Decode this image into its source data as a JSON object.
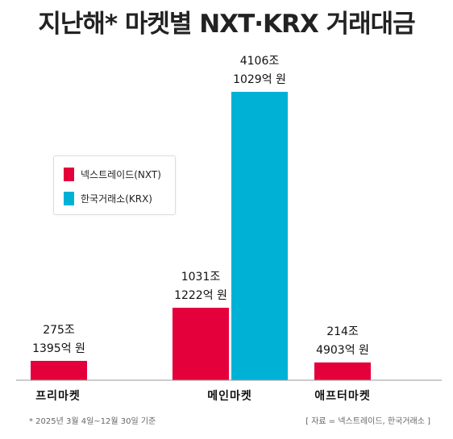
{
  "title": "지난해* 마켓별 NXT·KRX 거래대금",
  "colors": {
    "nxt": "#e4003a",
    "krx": "#00b1d6",
    "axis": "#999999"
  },
  "legend": {
    "nxt": "넥스트레이드(NXT)",
    "krx": "한국거래소(KRX)"
  },
  "footnote": "*  2025년 3월 4일~12월 30일 기준",
  "source": "[ 자료 = 넥스트레이드, 한국거래소 ]",
  "chart_data": {
    "type": "bar",
    "unit": "억 원",
    "categories": [
      "프리마켓",
      "메인마켓",
      "애프터마켓"
    ],
    "series": [
      {
        "name": "넥스트레이드(NXT)",
        "values": [
          2751395,
          10311222,
          2144903
        ],
        "labels": [
          [
            "275조",
            "1395억 원"
          ],
          [
            "1031조",
            "1222억 원"
          ],
          [
            "214조",
            "4903억 원"
          ]
        ]
      },
      {
        "name": "한국거래소(KRX)",
        "values": [
          null,
          41061029,
          null
        ],
        "labels": [
          null,
          [
            "4106조",
            "1029억 원"
          ],
          null
        ]
      }
    ],
    "ylim": [
      0,
      41061029
    ],
    "grid": false,
    "legend_position": "left-middle"
  }
}
